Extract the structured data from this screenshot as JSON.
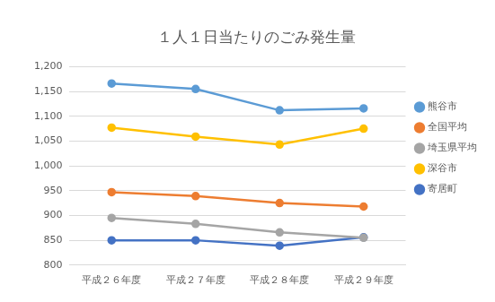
{
  "chart_data": {
    "type": "line",
    "title": "１人１日当たりのごみ発生量",
    "categories": [
      "平成２６年度",
      "平成２７年度",
      "平成２８年度",
      "平成２９年度"
    ],
    "series": [
      {
        "name": "熊谷市",
        "color": "#5b9bd5",
        "values": [
          1166,
          1155,
          1112,
          1116
        ]
      },
      {
        "name": "全国平均",
        "color": "#ed7d31",
        "values": [
          947,
          939,
          925,
          918
        ]
      },
      {
        "name": "埼玉県平均",
        "color": "#a5a5a5",
        "values": [
          895,
          883,
          866,
          855
        ]
      },
      {
        "name": "深谷市",
        "color": "#ffc000",
        "values": [
          1077,
          1059,
          1043,
          1075
        ]
      },
      {
        "name": "寄居町",
        "color": "#4472c4",
        "values": [
          850,
          850,
          839,
          856
        ]
      }
    ],
    "ylim": [
      800,
      1200
    ],
    "yticks": [
      800,
      850,
      900,
      950,
      {
        "value": 1000,
        "label": "1,000"
      },
      {
        "value": 1050,
        "label": "1,050"
      },
      {
        "value": 1100,
        "label": "1,100"
      },
      {
        "value": 1150,
        "label": "1,150"
      },
      {
        "value": 1200,
        "label": "1,200"
      }
    ],
    "grid": true,
    "legend": "right",
    "marker": "circle"
  }
}
